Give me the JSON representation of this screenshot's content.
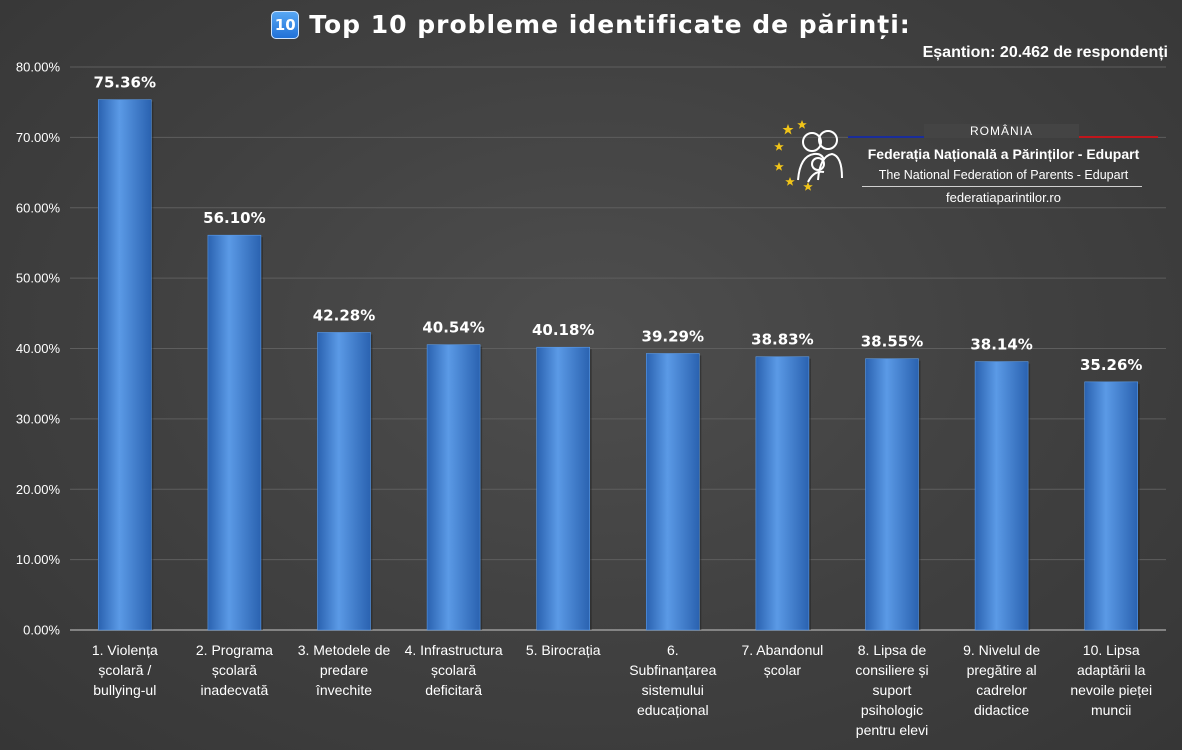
{
  "title": {
    "badge": "10",
    "text": "Top 10 probleme identificate de părinți:"
  },
  "sample": "Eșantion: 20.462 de respondenți",
  "logo": {
    "country": "ROMÂNIA",
    "name": "Federația Națională a Părinților - Edupart",
    "english_name": "The National Federation of Parents - Edupart",
    "website": "federatiaparintilor.ro"
  },
  "colors": {
    "bar": "#3c7fd4",
    "bar_light": "#5b9ae6",
    "bar_dark": "#2a62b0",
    "grid": "#5e5e5e",
    "axis": "#9a9a9a"
  },
  "chart_data": {
    "type": "bar",
    "title": "Top 10 probleme identificate de părinți:",
    "xlabel": "",
    "ylabel": "",
    "ylim": [
      0,
      80
    ],
    "y_tick_values": [
      0,
      10,
      20,
      30,
      40,
      50,
      60,
      70,
      80
    ],
    "y_tick_labels": [
      "0.00%",
      "10.00%",
      "20.00%",
      "30.00%",
      "40.00%",
      "50.00%",
      "60.00%",
      "70.00%",
      "80.00%"
    ],
    "grid": true,
    "legend": "none",
    "categories": [
      [
        "1. Violența",
        "școlară /",
        "bullying-ul"
      ],
      [
        "2. Programa",
        "școlară",
        "inadecvată"
      ],
      [
        "3. Metodele de",
        "predare",
        "învechite"
      ],
      [
        "4. Infrastructura",
        "școlară",
        "deficitară"
      ],
      [
        "5. Birocrația"
      ],
      [
        "6.",
        "Subfinanțarea",
        "sistemului",
        "educațional"
      ],
      [
        "7. Abandonul",
        "școlar"
      ],
      [
        "8. Lipsa de",
        "consiliere și",
        "suport",
        "psihologic",
        "pentru elevi"
      ],
      [
        "9. Nivelul de",
        "pregătire al",
        "cadrelor",
        "didactice"
      ],
      [
        "10. Lipsa",
        "adaptării la",
        "nevoile pieței",
        "muncii"
      ]
    ],
    "values": [
      75.36,
      56.1,
      42.28,
      40.54,
      40.18,
      39.29,
      38.83,
      38.55,
      38.14,
      35.26
    ],
    "value_labels": [
      "75.36%",
      "56.10%",
      "42.28%",
      "40.54%",
      "40.18%",
      "39.29%",
      "38.83%",
      "38.55%",
      "38.14%",
      "35.26%"
    ]
  }
}
